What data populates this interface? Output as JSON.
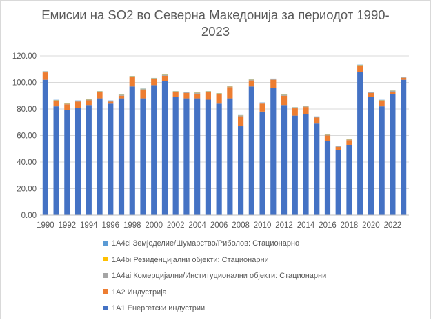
{
  "chart_data": {
    "type": "bar",
    "stacked": true,
    "title_line1": "Емисии на SO2 во Северна Македонија за периодот 1990-",
    "title_line2": "2023",
    "ylim": [
      0,
      120
    ],
    "y_ticks": [
      "0.00",
      "20.00",
      "40.00",
      "60.00",
      "80.00",
      "100.00",
      "120.00"
    ],
    "y_tick_values": [
      0,
      20,
      40,
      60,
      80,
      100,
      120
    ],
    "gridlines": true,
    "legend_position": "bottom",
    "categories": [
      1990,
      1991,
      1992,
      1993,
      1994,
      1995,
      1996,
      1997,
      1998,
      1999,
      2000,
      2001,
      2002,
      2003,
      2004,
      2005,
      2006,
      2007,
      2008,
      2009,
      2010,
      2011,
      2012,
      2013,
      2014,
      2015,
      2016,
      2017,
      2018,
      2019,
      2020,
      2021,
      2022,
      2023
    ],
    "x_tick_labels": [
      "1990",
      "1992",
      "1994",
      "1996",
      "1998",
      "2000",
      "2002",
      "2004",
      "2006",
      "2008",
      "2010",
      "2012",
      "2014",
      "2016",
      "2018",
      "2020",
      "2022"
    ],
    "series": [
      {
        "name": "1A1 Енергетски индустрии",
        "color": "#4472c4",
        "values": [
          102,
          82,
          79,
          81,
          83,
          88,
          84,
          88,
          97,
          88,
          98,
          101,
          89,
          88,
          88,
          87,
          84,
          88,
          67,
          97,
          78,
          96,
          83,
          75,
          76,
          69,
          56,
          49,
          53,
          108,
          89,
          82,
          91,
          102
        ]
      },
      {
        "name": "1A2 Индустрија",
        "color": "#ed7d31",
        "values": [
          5.5,
          4,
          4.5,
          4.5,
          3.5,
          4.5,
          1.5,
          2,
          7,
          6.5,
          4.5,
          4,
          3.5,
          4,
          3.5,
          5.5,
          7,
          8.5,
          7.5,
          4.5,
          6,
          6,
          7,
          5.5,
          5.5,
          4.5,
          4,
          2.5,
          3.5,
          4.5,
          3,
          4,
          2,
          1.5
        ]
      },
      {
        "name": "1A4ai Комерцијални/Институционални објекти: Стационарни",
        "color": "#a5a5a5",
        "values": [
          0.5,
          0.5,
          0.5,
          0.5,
          0.5,
          0.5,
          0.5,
          0.5,
          0.5,
          0.5,
          0.5,
          0.5,
          0.5,
          0.5,
          0.5,
          0.5,
          0.5,
          0.5,
          0.5,
          0.5,
          0.5,
          0.5,
          0.5,
          0.5,
          0.5,
          0.5,
          0.5,
          0.5,
          0.5,
          0.5,
          0.5,
          0.5,
          0.5,
          0.5
        ]
      },
      {
        "name": "1A4bi Резиденцијални објекти: Стационарни",
        "color": "#ffc000",
        "values": [
          0.2,
          0.2,
          0.2,
          0.2,
          0.2,
          0.2,
          0.2,
          0.2,
          0.2,
          0.2,
          0.2,
          0.2,
          0.2,
          0.2,
          0.2,
          0.2,
          0.2,
          0.2,
          0.2,
          0.2,
          0.2,
          0.2,
          0.2,
          0.2,
          0.2,
          0.2,
          0.2,
          0.2,
          0.2,
          0.2,
          0.2,
          0.2,
          0.2,
          0.2
        ]
      },
      {
        "name": "1A4ci Земјоделие/Шумарство/Риболов: Стационарно",
        "color": "#5b9bd5",
        "values": [
          0.2,
          0.2,
          0.2,
          0.2,
          0.2,
          0.2,
          0.2,
          0.2,
          0.2,
          0.2,
          0.2,
          0.2,
          0.2,
          0.2,
          0.2,
          0.2,
          0.2,
          0.2,
          0.2,
          0.2,
          0.2,
          0.2,
          0.2,
          0.2,
          0.2,
          0.2,
          0.2,
          0.2,
          0.2,
          0.2,
          0.2,
          0.2,
          0.2,
          0.2
        ]
      }
    ],
    "legend": [
      {
        "label": "1A4ci Земјоделие/Шумарство/Риболов: Стационарно",
        "color": "#5b9bd5"
      },
      {
        "label": "1A4bi Резиденцијални објекти: Стационарни",
        "color": "#ffc000"
      },
      {
        "label": "1A4ai Комерцијални/Институционални објекти: Стационарни",
        "color": "#a5a5a5"
      },
      {
        "label": "1A2 Индустрија",
        "color": "#ed7d31"
      },
      {
        "label": "1A1 Енергетски индустрии",
        "color": "#4472c4"
      }
    ]
  }
}
